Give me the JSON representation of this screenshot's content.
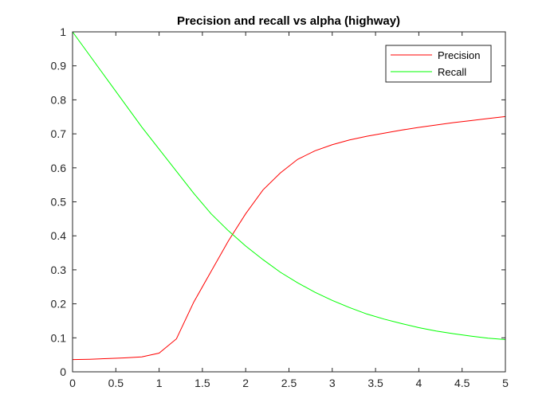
{
  "chart_data": {
    "type": "line",
    "title": "Precision and recall vs alpha (highway)",
    "xlabel": "",
    "ylabel": "",
    "xlim": [
      0,
      5
    ],
    "ylim": [
      0,
      1
    ],
    "xticks": [
      0,
      0.5,
      1,
      1.5,
      2,
      2.5,
      3,
      3.5,
      4,
      4.5,
      5
    ],
    "xtick_labels": [
      "0",
      "0.5",
      "1",
      "1.5",
      "2",
      "2.5",
      "3",
      "3.5",
      "4",
      "4.5",
      "5"
    ],
    "yticks": [
      0,
      0.1,
      0.2,
      0.3,
      0.4,
      0.5,
      0.6,
      0.7,
      0.8,
      0.9,
      1
    ],
    "ytick_labels": [
      "0",
      "0.1",
      "0.2",
      "0.3",
      "0.4",
      "0.5",
      "0.6",
      "0.7",
      "0.8",
      "0.9",
      "1"
    ],
    "grid": false,
    "legend_position": "top-right",
    "x": [
      0,
      0.2,
      0.4,
      0.6,
      0.8,
      1.0,
      1.2,
      1.4,
      1.6,
      1.8,
      2.0,
      2.2,
      2.4,
      2.6,
      2.8,
      3.0,
      3.2,
      3.4,
      3.6,
      3.8,
      4.0,
      4.2,
      4.4,
      4.6,
      4.8,
      5.0
    ],
    "series": [
      {
        "name": "Precision",
        "color": "#ff0000",
        "values": [
          0.036,
          0.037,
          0.039,
          0.041,
          0.044,
          0.055,
          0.097,
          0.205,
          0.295,
          0.385,
          0.465,
          0.535,
          0.585,
          0.625,
          0.65,
          0.668,
          0.682,
          0.693,
          0.702,
          0.711,
          0.719,
          0.726,
          0.733,
          0.739,
          0.745,
          0.751
        ]
      },
      {
        "name": "Recall",
        "color": "#00ff00",
        "values": [
          1.0,
          0.93,
          0.86,
          0.79,
          0.72,
          0.655,
          0.59,
          0.525,
          0.465,
          0.415,
          0.37,
          0.33,
          0.293,
          0.262,
          0.234,
          0.21,
          0.189,
          0.17,
          0.155,
          0.142,
          0.13,
          0.12,
          0.112,
          0.105,
          0.099,
          0.095
        ]
      }
    ]
  }
}
